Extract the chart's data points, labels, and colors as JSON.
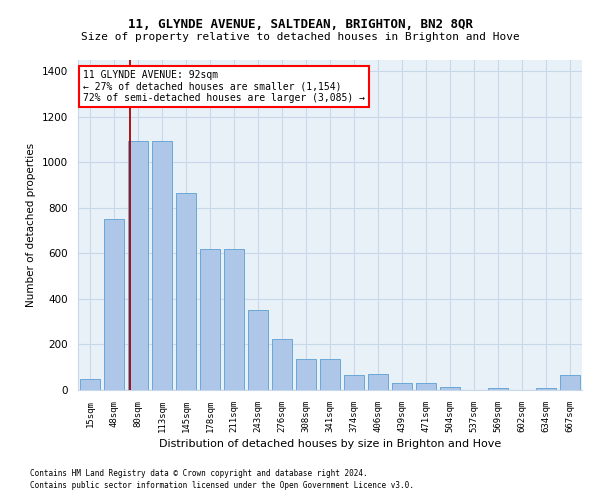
{
  "title": "11, GLYNDE AVENUE, SALTDEAN, BRIGHTON, BN2 8QR",
  "subtitle": "Size of property relative to detached houses in Brighton and Hove",
  "xlabel": "Distribution of detached houses by size in Brighton and Hove",
  "ylabel": "Number of detached properties",
  "footer1": "Contains HM Land Registry data © Crown copyright and database right 2024.",
  "footer2": "Contains public sector information licensed under the Open Government Licence v3.0.",
  "bar_labels": [
    "15sqm",
    "48sqm",
    "80sqm",
    "113sqm",
    "145sqm",
    "178sqm",
    "211sqm",
    "243sqm",
    "276sqm",
    "308sqm",
    "341sqm",
    "374sqm",
    "406sqm",
    "439sqm",
    "471sqm",
    "504sqm",
    "537sqm",
    "569sqm",
    "602sqm",
    "634sqm",
    "667sqm"
  ],
  "bar_values": [
    50,
    750,
    1095,
    1095,
    865,
    620,
    620,
    350,
    225,
    135,
    135,
    65,
    70,
    30,
    30,
    15,
    0,
    10,
    0,
    10,
    65
  ],
  "bar_color": "#aec6e8",
  "bar_edgecolor": "#5a9fd4",
  "background_color": "#e8f0f8",
  "grid_color": "#c8d8e8",
  "annotation_text_line1": "11 GLYNDE AVENUE: 92sqm",
  "annotation_text_line2": "← 27% of detached houses are smaller (1,154)",
  "annotation_text_line3": "72% of semi-detached houses are larger (3,085) →",
  "vline_x_index": 2,
  "vline_color": "#aa0000",
  "ylim": [
    0,
    1450
  ],
  "yticks": [
    0,
    200,
    400,
    600,
    800,
    1000,
    1200,
    1400
  ],
  "title_fontsize": 9,
  "subtitle_fontsize": 8
}
